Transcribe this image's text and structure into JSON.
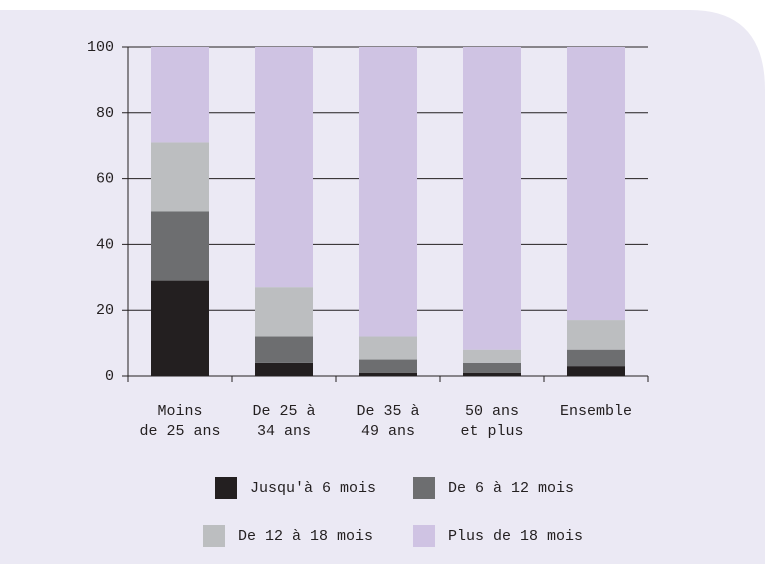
{
  "chart_data": {
    "type": "stacked_bar",
    "categories": [
      "Moins\nde 25 ans",
      "De 25  à\n34 ans",
      "De 35  à\n49 ans",
      "50 ans\net plus",
      "Ensemble"
    ],
    "series": [
      {
        "name": "Jusqu'à 6 mois",
        "color": "#231f20",
        "values": [
          29,
          4,
          1,
          1,
          3
        ]
      },
      {
        "name": "De 6 à 12 mois",
        "color": "#6d6e70",
        "values": [
          21,
          8,
          4,
          3,
          5
        ]
      },
      {
        "name": "De 12 à 18 mois",
        "color": "#bcbec0",
        "values": [
          21,
          15,
          7,
          4,
          9
        ]
      },
      {
        "name": "Plus de 18 mois",
        "color": "#cfc3e3",
        "values": [
          29,
          73,
          88,
          92,
          83
        ]
      }
    ],
    "ylim": [
      0,
      100
    ],
    "yticks": [
      0,
      20,
      40,
      60,
      80,
      100
    ],
    "grid": true
  }
}
